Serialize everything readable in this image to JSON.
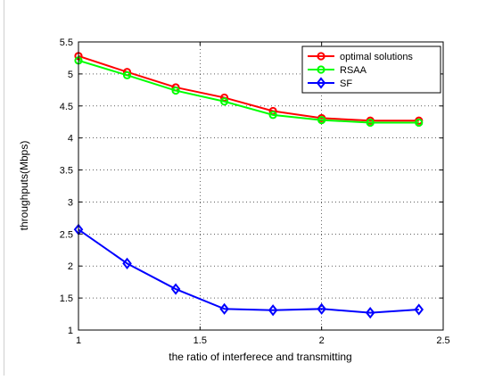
{
  "chart_data": {
    "type": "line",
    "title": "",
    "xlabel": "the ratio of interferece and transmitting",
    "ylabel": "throughputs(Mbps)",
    "xlim": [
      1,
      2.5
    ],
    "ylim": [
      1,
      5.5
    ],
    "x_ticks": [
      1,
      1.5,
      2,
      2.5
    ],
    "x_tick_labels": [
      "1",
      "1.5",
      "2",
      "2.5"
    ],
    "y_ticks": [
      1,
      1.5,
      2,
      2.5,
      3,
      3.5,
      4,
      4.5,
      5,
      5.5
    ],
    "y_tick_labels": [
      "1",
      "1.5",
      "2",
      "2.5",
      "3",
      "3.5",
      "4",
      "4.5",
      "5",
      "5.5"
    ],
    "grid": true,
    "legend_position": "top-right",
    "x": [
      1,
      1.2,
      1.4,
      1.6,
      1.8,
      2.0,
      2.2,
      2.4
    ],
    "series": [
      {
        "name": "optimal solutions",
        "color": "#ff0000",
        "marker": "circle",
        "values": [
          5.28,
          5.03,
          4.79,
          4.63,
          4.42,
          4.31,
          4.27,
          4.27
        ]
      },
      {
        "name": "RSAA",
        "color": "#00ff00",
        "marker": "circle",
        "values": [
          5.21,
          4.98,
          4.74,
          4.57,
          4.36,
          4.28,
          4.24,
          4.24
        ]
      },
      {
        "name": "SF",
        "color": "#0000ff",
        "marker": "diamond",
        "values": [
          2.57,
          2.04,
          1.64,
          1.33,
          1.31,
          1.33,
          1.27,
          1.32
        ]
      }
    ]
  }
}
